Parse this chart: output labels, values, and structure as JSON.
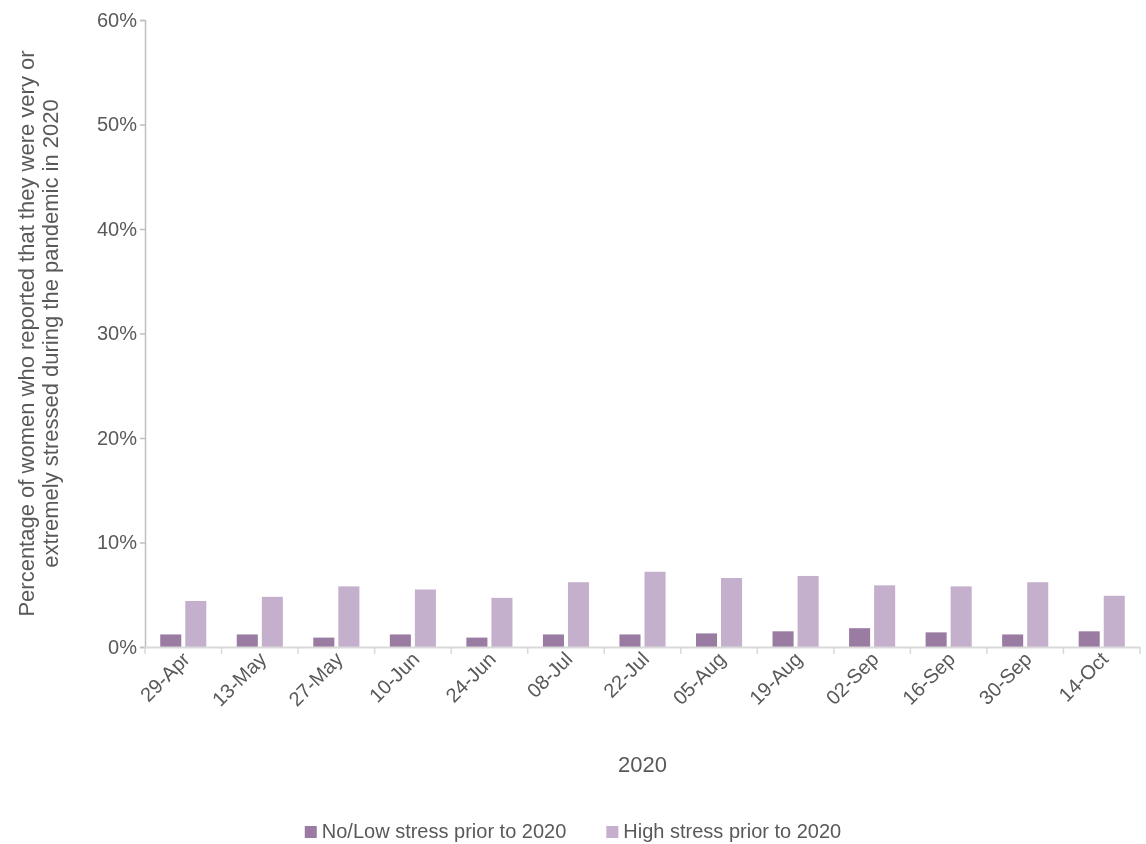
{
  "chart_data": {
    "type": "bar",
    "xlabel": "2020",
    "ylabel": "Percentage of women who reported that they were very or extremely stressed during the pandemic in 2020",
    "categories": [
      "29-Apr",
      "13-May",
      "27-May",
      "10-Jun",
      "24-Jun",
      "08-Jul",
      "22-Jul",
      "05-Aug",
      "19-Aug",
      "02-Sep",
      "16-Sep",
      "30-Sep",
      "14-Oct"
    ],
    "series": [
      {
        "name": "No/Low stress prior to 2020",
        "color": "#9a7ba2",
        "values": [
          1.2,
          1.2,
          0.9,
          1.2,
          0.9,
          1.2,
          1.2,
          1.3,
          1.5,
          1.8,
          1.4,
          1.2,
          1.5
        ]
      },
      {
        "name": "High stress prior to 2020",
        "color": "#c4afcc",
        "values": [
          4.4,
          4.8,
          5.8,
          5.5,
          4.7,
          6.2,
          7.2,
          6.6,
          6.8,
          5.9,
          5.8,
          6.2,
          4.9
        ]
      }
    ],
    "ylim": [
      0,
      60
    ],
    "yticks": [
      {
        "value": 0,
        "label": "0%"
      },
      {
        "value": 10,
        "label": "10%"
      },
      {
        "value": 20,
        "label": "20%"
      },
      {
        "value": 30,
        "label": "30%"
      },
      {
        "value": 40,
        "label": "40%"
      },
      {
        "value": 50,
        "label": "50%"
      },
      {
        "value": 60,
        "label": "60%"
      }
    ],
    "grid": false,
    "legend": "bottom"
  }
}
